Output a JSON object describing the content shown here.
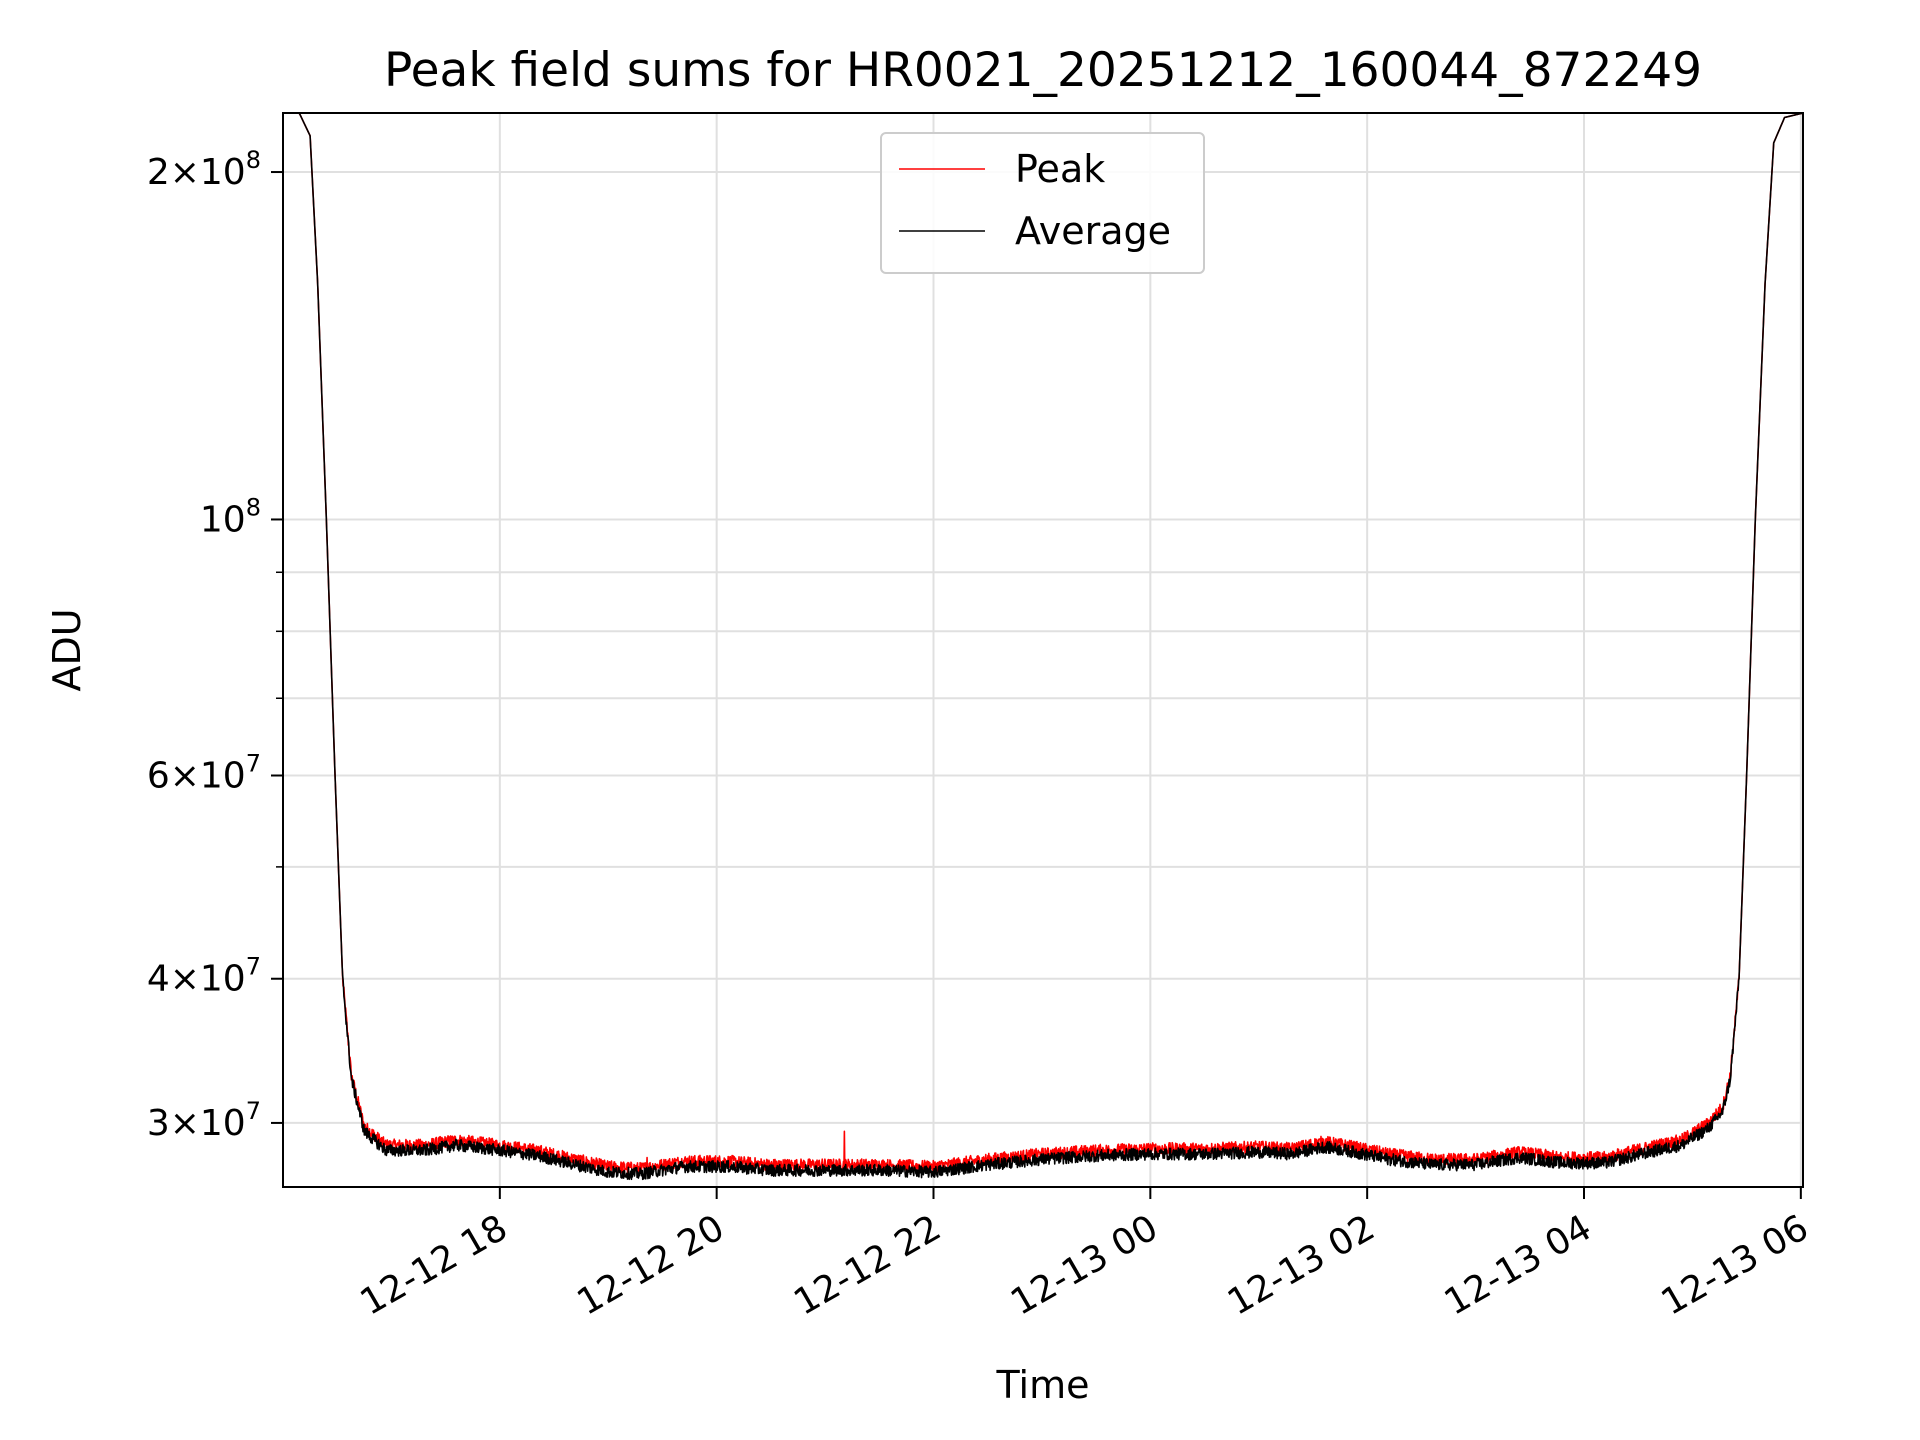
{
  "chart_data": {
    "type": "line",
    "title": "Peak field sums for HR0021_20251212_160044_872249",
    "xlabel": "Time",
    "ylabel": "ADU",
    "yscale": "log",
    "ylim": [
      26400000,
      225000000
    ],
    "xlim_hours": [
      16.0,
      30.02
    ],
    "grid": true,
    "legend_position": "upper center",
    "x_ticks": [
      {
        "hours": 18,
        "label": "12-12 18"
      },
      {
        "hours": 20,
        "label": "12-12 20"
      },
      {
        "hours": 22,
        "label": "12-12 22"
      },
      {
        "hours": 24,
        "label": "12-13 00"
      },
      {
        "hours": 26,
        "label": "12-13 02"
      },
      {
        "hours": 28,
        "label": "12-13 04"
      },
      {
        "hours": 30,
        "label": "12-13 06"
      }
    ],
    "y_ticks": [
      {
        "value": 200000000,
        "mantissa": "2",
        "exp": "8"
      },
      {
        "value": 100000000,
        "mantissa": "",
        "exp": "8"
      },
      {
        "value": 60000000,
        "mantissa": "6",
        "exp": "7"
      },
      {
        "value": 40000000,
        "mantissa": "4",
        "exp": "7"
      },
      {
        "value": 30000000,
        "mantissa": "3",
        "exp": "7"
      }
    ],
    "y_minor_values": [
      90000000,
      80000000,
      70000000,
      50000000
    ],
    "series": [
      {
        "name": "Peak",
        "color": "#ff0000",
        "noise_amplitude": 0.012,
        "points": [
          [
            16.15,
            225000000
          ],
          [
            16.25,
            215000000
          ],
          [
            16.32,
            160000000
          ],
          [
            16.4,
            100000000
          ],
          [
            16.48,
            60000000
          ],
          [
            16.55,
            40000000
          ],
          [
            16.63,
            33000000
          ],
          [
            16.75,
            29800000
          ],
          [
            16.95,
            28700000
          ],
          [
            17.3,
            28700000
          ],
          [
            17.6,
            29000000
          ],
          [
            18.0,
            28700000
          ],
          [
            18.35,
            28400000
          ],
          [
            18.7,
            27900000
          ],
          [
            19.0,
            27500000
          ],
          [
            19.3,
            27400000
          ],
          [
            19.7,
            27800000
          ],
          [
            20.1,
            27800000
          ],
          [
            20.5,
            27600000
          ],
          [
            21.0,
            27600000
          ],
          [
            21.5,
            27600000
          ],
          [
            22.0,
            27500000
          ],
          [
            22.5,
            27900000
          ],
          [
            23.0,
            28200000
          ],
          [
            23.5,
            28400000
          ],
          [
            24.0,
            28500000
          ],
          [
            24.5,
            28500000
          ],
          [
            25.0,
            28600000
          ],
          [
            25.3,
            28500000
          ],
          [
            25.6,
            28900000
          ],
          [
            25.8,
            28700000
          ],
          [
            26.2,
            28200000
          ],
          [
            26.6,
            27900000
          ],
          [
            27.0,
            27900000
          ],
          [
            27.4,
            28300000
          ],
          [
            27.8,
            28000000
          ],
          [
            28.2,
            28000000
          ],
          [
            28.6,
            28600000
          ],
          [
            28.9,
            29000000
          ],
          [
            29.15,
            30000000
          ],
          [
            29.28,
            31000000
          ],
          [
            29.35,
            33000000
          ],
          [
            29.43,
            40000000
          ],
          [
            29.5,
            60000000
          ],
          [
            29.58,
            100000000
          ],
          [
            29.67,
            160000000
          ],
          [
            29.75,
            212000000
          ],
          [
            29.85,
            223000000
          ],
          [
            30.02,
            225000000
          ]
        ],
        "spikes": [
          [
            19.36,
            28000000
          ],
          [
            21.18,
            29500000
          ]
        ]
      },
      {
        "name": "Average",
        "color": "#000000",
        "noise_amplitude": 0.012,
        "points": [
          [
            16.15,
            225000000
          ],
          [
            16.25,
            215000000
          ],
          [
            16.32,
            160000000
          ],
          [
            16.4,
            100000000
          ],
          [
            16.48,
            60000000
          ],
          [
            16.55,
            40000000
          ],
          [
            16.63,
            32800000
          ],
          [
            16.75,
            29500000
          ],
          [
            16.95,
            28400000
          ],
          [
            17.3,
            28400000
          ],
          [
            17.6,
            28700000
          ],
          [
            18.0,
            28400000
          ],
          [
            18.35,
            28100000
          ],
          [
            18.7,
            27600000
          ],
          [
            19.0,
            27200000
          ],
          [
            19.3,
            27100000
          ],
          [
            19.7,
            27500000
          ],
          [
            20.1,
            27500000
          ],
          [
            20.5,
            27300000
          ],
          [
            21.0,
            27300000
          ],
          [
            21.5,
            27300000
          ],
          [
            22.0,
            27200000
          ],
          [
            22.5,
            27600000
          ],
          [
            23.0,
            27900000
          ],
          [
            23.5,
            28100000
          ],
          [
            24.0,
            28200000
          ],
          [
            24.5,
            28200000
          ],
          [
            25.0,
            28300000
          ],
          [
            25.3,
            28200000
          ],
          [
            25.6,
            28600000
          ],
          [
            25.8,
            28400000
          ],
          [
            26.2,
            27900000
          ],
          [
            26.6,
            27600000
          ],
          [
            27.0,
            27600000
          ],
          [
            27.4,
            28000000
          ],
          [
            27.8,
            27700000
          ],
          [
            28.2,
            27700000
          ],
          [
            28.6,
            28300000
          ],
          [
            28.9,
            28700000
          ],
          [
            29.15,
            29700000
          ],
          [
            29.28,
            30700000
          ],
          [
            29.35,
            32800000
          ],
          [
            29.43,
            40000000
          ],
          [
            29.5,
            60000000
          ],
          [
            29.58,
            100000000
          ],
          [
            29.67,
            160000000
          ],
          [
            29.75,
            212000000
          ],
          [
            29.85,
            223000000
          ],
          [
            30.02,
            225000000
          ]
        ],
        "spikes": []
      }
    ]
  }
}
